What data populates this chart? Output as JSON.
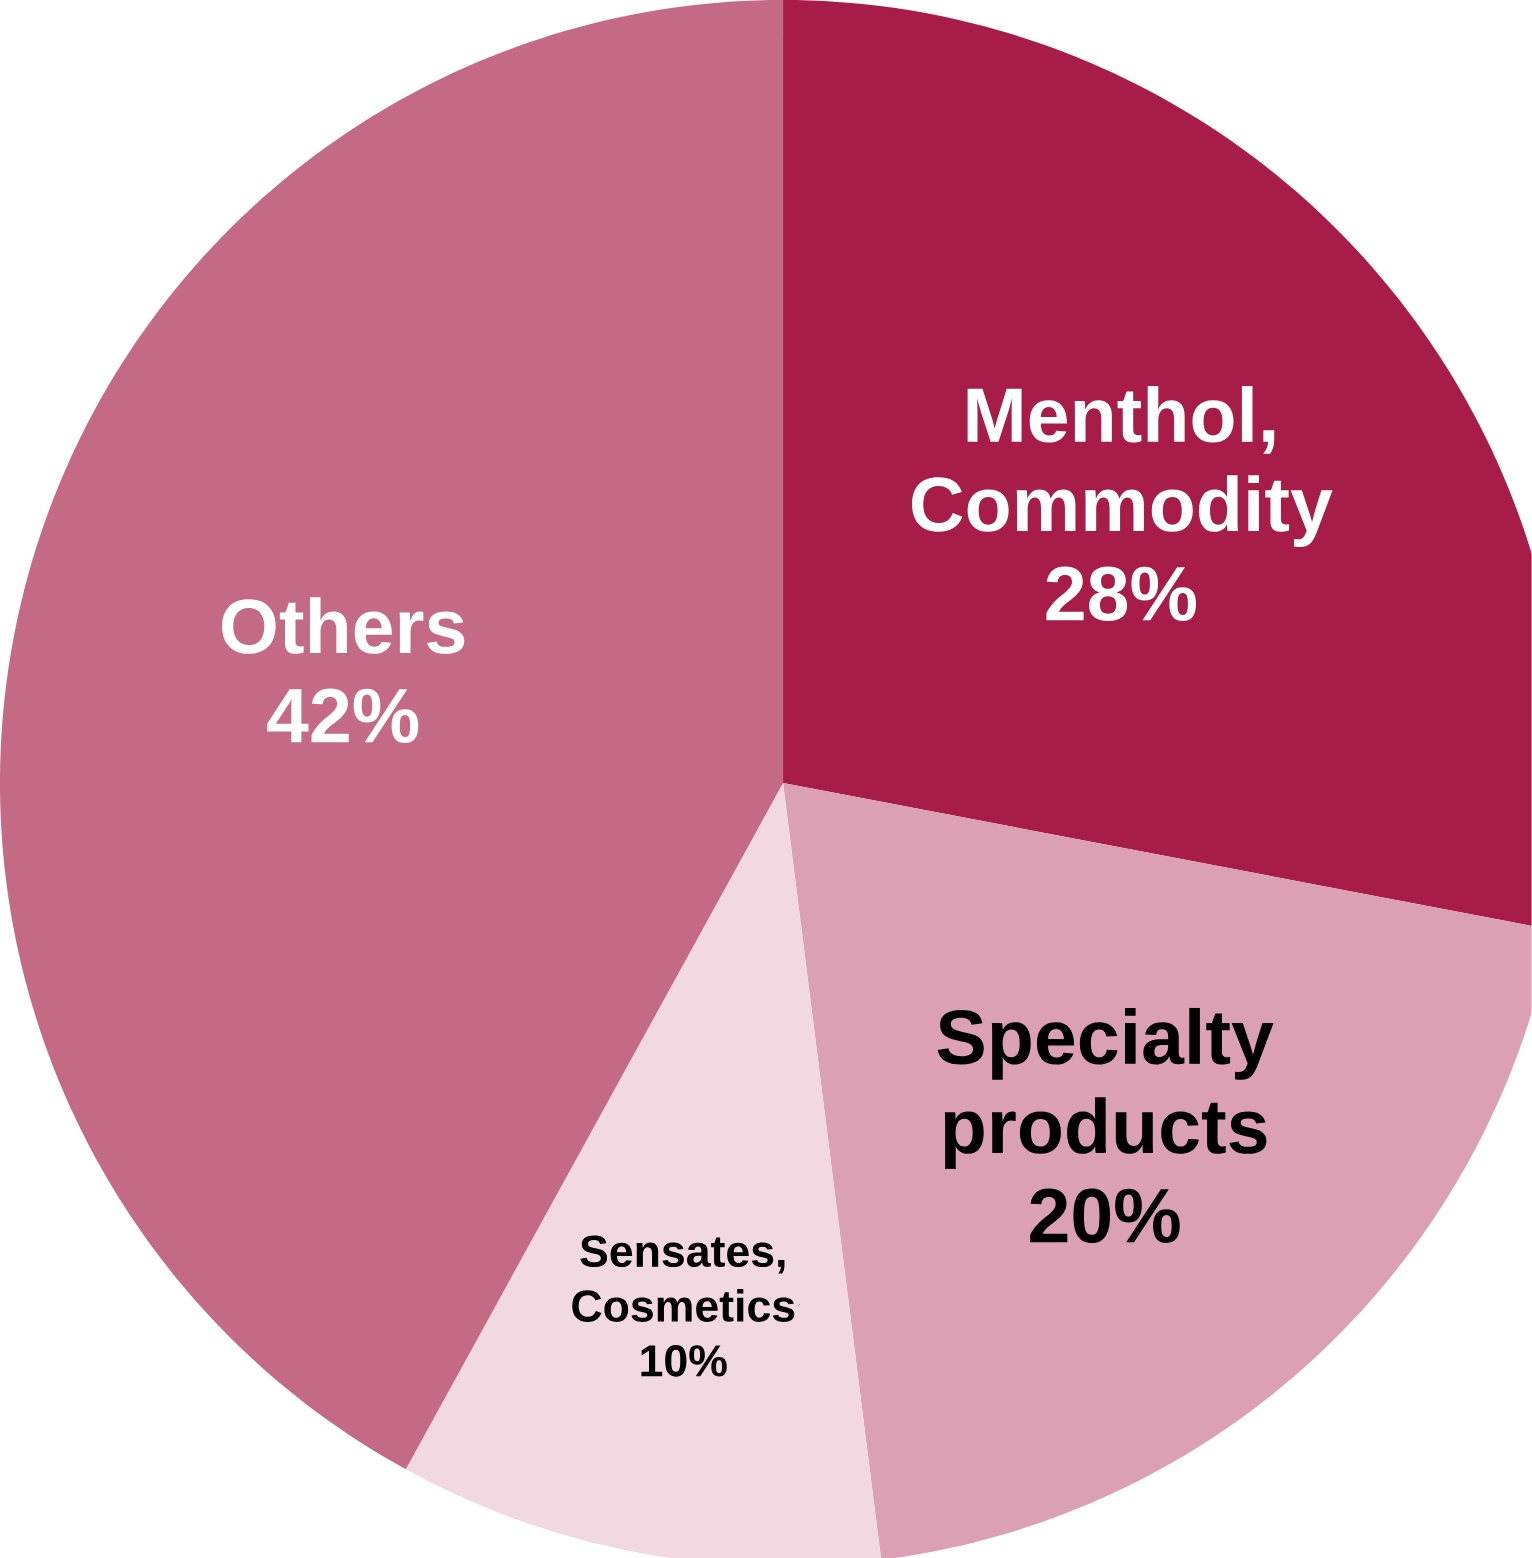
{
  "chart_data": {
    "type": "pie",
    "categories": [
      "Menthol, Commodity",
      "Specialty products",
      "Sensates, Cosmetics",
      "Others"
    ],
    "values": [
      28,
      20,
      10,
      42
    ],
    "value_labels": [
      "28%",
      "20%",
      "10%",
      "42%"
    ],
    "colors": [
      "#a81c4a",
      "#dba0b4",
      "#f2d9e1",
      "#c46a87"
    ]
  }
}
